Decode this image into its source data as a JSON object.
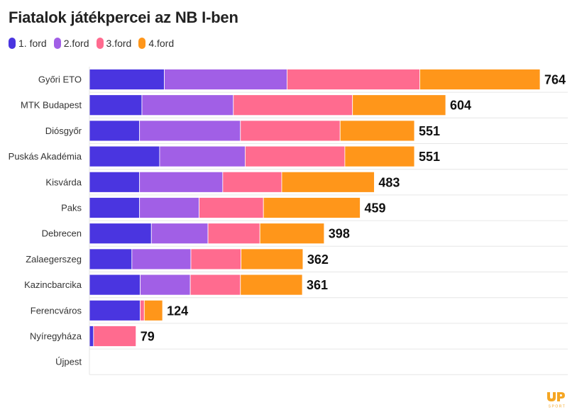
{
  "colors": {
    "grid": "#e6e6e6",
    "logo": "#f5a623"
  },
  "logo_text": "up SPORT",
  "chart_data": {
    "type": "bar",
    "orientation": "horizontal",
    "stacked": true,
    "title": "Fiatalok játékpercei az NB I-ben",
    "xlabel": "",
    "ylabel": "",
    "xlim": [
      0,
      764
    ],
    "grid": true,
    "legend_position": "top-left",
    "categories": [
      "Győri ETO",
      "MTK Budapest",
      "Diósgyőr",
      "Puskás Akadémia",
      "Kisvárda",
      "Paks",
      "Debrecen",
      "Zalaegerszeg",
      "Kazincbarcika",
      "Ferencváros",
      "Nyíregyháza",
      "Újpest"
    ],
    "series": [
      {
        "name": "1. ford",
        "color": "#4a35e0",
        "values": [
          127,
          89,
          85,
          119,
          85,
          85,
          105,
          72,
          86,
          86,
          7,
          0
        ]
      },
      {
        "name": "2.ford",
        "color": "#a15fe6",
        "values": [
          208,
          155,
          171,
          145,
          141,
          101,
          96,
          100,
          85,
          0,
          0,
          0
        ]
      },
      {
        "name": "3.ford",
        "color": "#ff6b8f",
        "values": [
          225,
          202,
          169,
          169,
          100,
          109,
          88,
          85,
          85,
          7,
          72,
          0
        ]
      },
      {
        "name": "4.ford",
        "color": "#ff961a",
        "values": [
          204,
          158,
          126,
          118,
          157,
          164,
          109,
          105,
          105,
          31,
          0,
          0
        ]
      }
    ],
    "totals": [
      "764",
      "604",
      "551",
      "551",
      "483",
      "459",
      "398",
      "362",
      "361",
      "124",
      "79",
      ""
    ]
  }
}
